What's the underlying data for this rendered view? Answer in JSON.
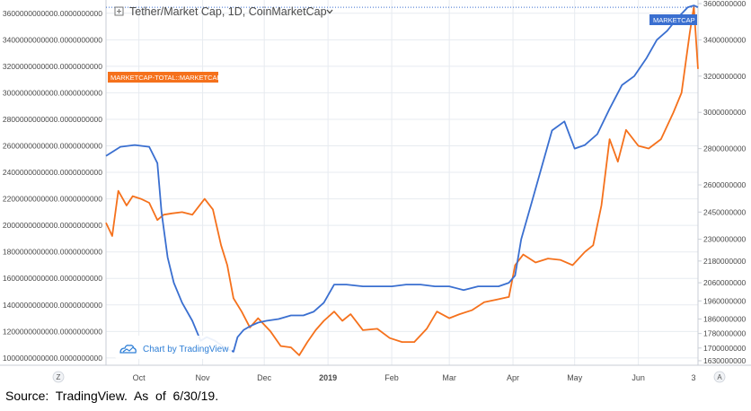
{
  "header": {
    "title": "Tether/Market Cap, 1D, CoinMarketCap",
    "chevron_icon": "chevron-down-icon",
    "add_icon": "plus-square-icon"
  },
  "footer": {
    "source": "Source:  TradingView.  As  of  6/30/19."
  },
  "watermark": {
    "label": "Chart by TradingView",
    "icon": "tradingview-cloud-icon"
  },
  "scale_buttons": {
    "left": "Z",
    "right": "A"
  },
  "colors": {
    "blue": "#3a6fd0",
    "orange": "#f5711c",
    "grid": "#e7ebf0",
    "axis_text": "#4a4a4a"
  },
  "chart_data": {
    "type": "line",
    "title": "Tether/Market Cap, 1D, CoinMarketCap",
    "x_ticks": [
      "Oct",
      "Nov",
      "Dec",
      "2019",
      "Feb",
      "Mar",
      "Apr",
      "May",
      "Jun",
      "3"
    ],
    "grid": true,
    "series": [
      {
        "name": "MARKETCAP",
        "color": "#3a6fd0",
        "axis": "right",
        "ylim": [
          1605000000,
          3620000000
        ],
        "ticks": [
          3600000000,
          3400000000,
          3200000000,
          3000000000,
          2800000000,
          2600000000,
          2450000000,
          2300000000,
          2180000000,
          2060000000,
          1960000000,
          1860000000,
          1780000000,
          1700000000,
          1630000000
        ],
        "tick_labels": [
          "3600000000",
          "3400000000",
          "3200000000",
          "3000000000",
          "2800000000",
          "2600000000",
          "2450000000",
          "2300000000",
          "2180000000",
          "2060000000",
          "1960000000",
          "1860000000",
          "1780000000",
          "1700000000",
          "1630000000"
        ],
        "label": "MARKETCAP",
        "x": [
          "2018-09-15",
          "2018-09-22",
          "2018-09-29",
          "2018-10-06",
          "2018-10-10",
          "2018-10-12",
          "2018-10-15",
          "2018-10-18",
          "2018-10-22",
          "2018-10-27",
          "2018-10-31",
          "2018-11-03",
          "2018-11-07",
          "2018-11-12",
          "2018-11-16",
          "2018-11-18",
          "2018-11-21",
          "2018-11-24",
          "2018-11-28",
          "2018-12-02",
          "2018-12-08",
          "2018-12-14",
          "2018-12-20",
          "2018-12-25",
          "2018-12-30",
          "2019-01-04",
          "2019-01-10",
          "2019-01-18",
          "2019-01-25",
          "2019-02-01",
          "2019-02-08",
          "2019-02-15",
          "2019-02-22",
          "2019-03-01",
          "2019-03-08",
          "2019-03-15",
          "2019-03-20",
          "2019-03-25",
          "2019-03-30",
          "2019-04-02",
          "2019-04-05",
          "2019-04-10",
          "2019-04-15",
          "2019-04-20",
          "2019-04-26",
          "2019-05-01",
          "2019-05-06",
          "2019-05-12",
          "2019-05-18",
          "2019-05-24",
          "2019-05-30",
          "2019-06-05",
          "2019-06-10",
          "2019-06-15",
          "2019-06-20",
          "2019-06-25",
          "2019-06-28",
          "2019-06-30"
        ],
        "values": [
          2760000000,
          2810000000,
          2820000000,
          2810000000,
          2720000000,
          2450000000,
          2200000000,
          2060000000,
          1950000000,
          1850000000,
          1740000000,
          1760000000,
          1740000000,
          1700000000,
          1680000000,
          1760000000,
          1800000000,
          1820000000,
          1840000000,
          1850000000,
          1860000000,
          1880000000,
          1880000000,
          1900000000,
          1950000000,
          2050000000,
          2050000000,
          2040000000,
          2040000000,
          2040000000,
          2050000000,
          2050000000,
          2040000000,
          2040000000,
          2020000000,
          2040000000,
          2040000000,
          2040000000,
          2060000000,
          2100000000,
          2300000000,
          2500000000,
          2700000000,
          2900000000,
          2950000000,
          2800000000,
          2820000000,
          2880000000,
          3020000000,
          3150000000,
          3200000000,
          3300000000,
          3400000000,
          3450000000,
          3520000000,
          3580000000,
          3590000000,
          3580000000
        ]
      },
      {
        "name": "MARKETCAP-TOTAL::MARKETCAP",
        "color": "#f5711c",
        "axis": "left",
        "ylim": [
          945000000000,
          3700000000000
        ],
        "ticks": [
          3600000000000,
          3400000000000,
          3200000000000,
          3000000000000,
          2800000000000,
          2600000000000,
          2400000000000,
          2200000000000,
          2000000000000,
          1800000000000,
          1600000000000,
          1400000000000,
          1200000000000,
          1000000000000
        ],
        "tick_labels": [
          "3600000000000.0000000000",
          "3400000000000.0000000000",
          "3200000000000.0000000000",
          "3000000000000.0000000000",
          "2800000000000.0000000000",
          "2600000000000.0000000000",
          "2400000000000.0000000000",
          "2200000000000.0000000000",
          "2000000000000.0000000000",
          "1800000000000.0000000000",
          "1600000000000.0000000000",
          "1400000000000.0000000000",
          "1200000000000.0000000000",
          "1000000000000.0000000000"
        ],
        "label": "MARKETCAP-TOTAL::MARKETCAP",
        "x": [
          "2018-09-15",
          "2018-09-18",
          "2018-09-21",
          "2018-09-25",
          "2018-09-28",
          "2018-10-02",
          "2018-10-06",
          "2018-10-10",
          "2018-10-13",
          "2018-10-17",
          "2018-10-22",
          "2018-10-27",
          "2018-11-02",
          "2018-11-06",
          "2018-11-10",
          "2018-11-13",
          "2018-11-16",
          "2018-11-20",
          "2018-11-24",
          "2018-11-28",
          "2018-12-04",
          "2018-12-09",
          "2018-12-14",
          "2018-12-18",
          "2018-12-22",
          "2018-12-26",
          "2018-12-30",
          "2019-01-04",
          "2019-01-08",
          "2019-01-12",
          "2019-01-18",
          "2019-01-25",
          "2019-01-31",
          "2019-02-06",
          "2019-02-12",
          "2019-02-18",
          "2019-02-23",
          "2019-03-01",
          "2019-03-06",
          "2019-03-12",
          "2019-03-18",
          "2019-03-24",
          "2019-03-30",
          "2019-04-02",
          "2019-04-06",
          "2019-04-12",
          "2019-04-18",
          "2019-04-24",
          "2019-04-30",
          "2019-05-06",
          "2019-05-10",
          "2019-05-14",
          "2019-05-18",
          "2019-05-22",
          "2019-05-26",
          "2019-06-01",
          "2019-06-06",
          "2019-06-12",
          "2019-06-18",
          "2019-06-22",
          "2019-06-26",
          "2019-06-28",
          "2019-06-30"
        ],
        "values": [
          2020000000000,
          1920000000000,
          2260000000000,
          2150000000000,
          2220000000000,
          2200000000000,
          2170000000000,
          2040000000000,
          2080000000000,
          2090000000000,
          2100000000000,
          2080000000000,
          2200000000000,
          2120000000000,
          1850000000000,
          1700000000000,
          1450000000000,
          1350000000000,
          1230000000000,
          1300000000000,
          1200000000000,
          1090000000000,
          1080000000000,
          1020000000000,
          1120000000000,
          1210000000000,
          1280000000000,
          1350000000000,
          1280000000000,
          1330000000000,
          1210000000000,
          1220000000000,
          1150000000000,
          1120000000000,
          1120000000000,
          1220000000000,
          1350000000000,
          1300000000000,
          1330000000000,
          1360000000000,
          1420000000000,
          1440000000000,
          1460000000000,
          1700000000000,
          1780000000000,
          1720000000000,
          1750000000000,
          1740000000000,
          1700000000000,
          1800000000000,
          1850000000000,
          2150000000000,
          2650000000000,
          2480000000000,
          2720000000000,
          2600000000000,
          2580000000000,
          2650000000000,
          2850000000000,
          3000000000000,
          3450000000000,
          3650000000000,
          3180000000000
        ]
      }
    ]
  }
}
